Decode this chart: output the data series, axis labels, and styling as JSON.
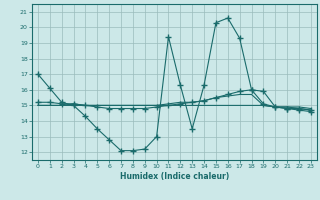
{
  "xlabel": "Humidex (Indice chaleur)",
  "xlim": [
    -0.5,
    23.5
  ],
  "ylim": [
    11.5,
    21.5
  ],
  "xticks": [
    0,
    1,
    2,
    3,
    4,
    5,
    6,
    7,
    8,
    9,
    10,
    11,
    12,
    13,
    14,
    15,
    16,
    17,
    18,
    19,
    20,
    21,
    22,
    23
  ],
  "yticks": [
    12,
    13,
    14,
    15,
    16,
    17,
    18,
    19,
    20,
    21
  ],
  "background_color": "#cce8e8",
  "grid_color": "#9bbcbc",
  "line_color": "#1a6b6b",
  "series": [
    {
      "x": [
        0,
        1,
        2,
        3,
        4,
        5,
        6,
        7,
        8,
        9,
        10,
        11,
        12,
        13,
        14,
        15,
        16,
        17,
        18,
        19,
        20,
        21,
        22,
        23
      ],
      "y": [
        17.0,
        16.1,
        15.2,
        15.0,
        14.3,
        13.5,
        12.8,
        12.1,
        12.1,
        12.2,
        13.0,
        19.4,
        16.3,
        13.5,
        16.3,
        20.3,
        20.6,
        19.3,
        16.0,
        15.9,
        14.9,
        14.8,
        14.8,
        14.7
      ],
      "marker": "+"
    },
    {
      "x": [
        0,
        1,
        2,
        3,
        4,
        5,
        6,
        7,
        8,
        9,
        10,
        11,
        12,
        13,
        14,
        15,
        16,
        17,
        18,
        19,
        20,
        21,
        22,
        23
      ],
      "y": [
        15.2,
        15.2,
        15.1,
        15.1,
        15.0,
        14.9,
        14.8,
        14.8,
        14.8,
        14.8,
        14.9,
        15.0,
        15.1,
        15.2,
        15.3,
        15.5,
        15.7,
        15.9,
        16.0,
        15.1,
        14.9,
        14.8,
        14.7,
        14.6
      ],
      "marker": "+"
    },
    {
      "x": [
        0,
        1,
        2,
        3,
        4,
        5,
        6,
        7,
        8,
        9,
        10,
        11,
        12,
        13,
        14,
        15,
        16,
        17,
        18,
        19,
        20,
        21,
        22,
        23
      ],
      "y": [
        15.0,
        15.0,
        15.0,
        15.1,
        15.0,
        15.0,
        15.0,
        15.0,
        15.0,
        15.0,
        15.0,
        15.1,
        15.2,
        15.2,
        15.3,
        15.5,
        15.6,
        15.7,
        15.7,
        15.0,
        14.9,
        14.9,
        14.9,
        14.8
      ],
      "marker": null
    },
    {
      "x": [
        0,
        1,
        2,
        3,
        4,
        5,
        6,
        7,
        8,
        9,
        10,
        11,
        12,
        13,
        14,
        15,
        16,
        17,
        18,
        19,
        20,
        21,
        22,
        23
      ],
      "y": [
        15.0,
        15.0,
        15.0,
        15.0,
        15.0,
        15.0,
        15.0,
        15.0,
        15.0,
        15.0,
        15.0,
        15.0,
        15.0,
        15.0,
        15.0,
        15.0,
        15.0,
        15.0,
        15.0,
        15.0,
        14.9,
        14.9,
        14.8,
        14.7
      ],
      "marker": null
    }
  ]
}
